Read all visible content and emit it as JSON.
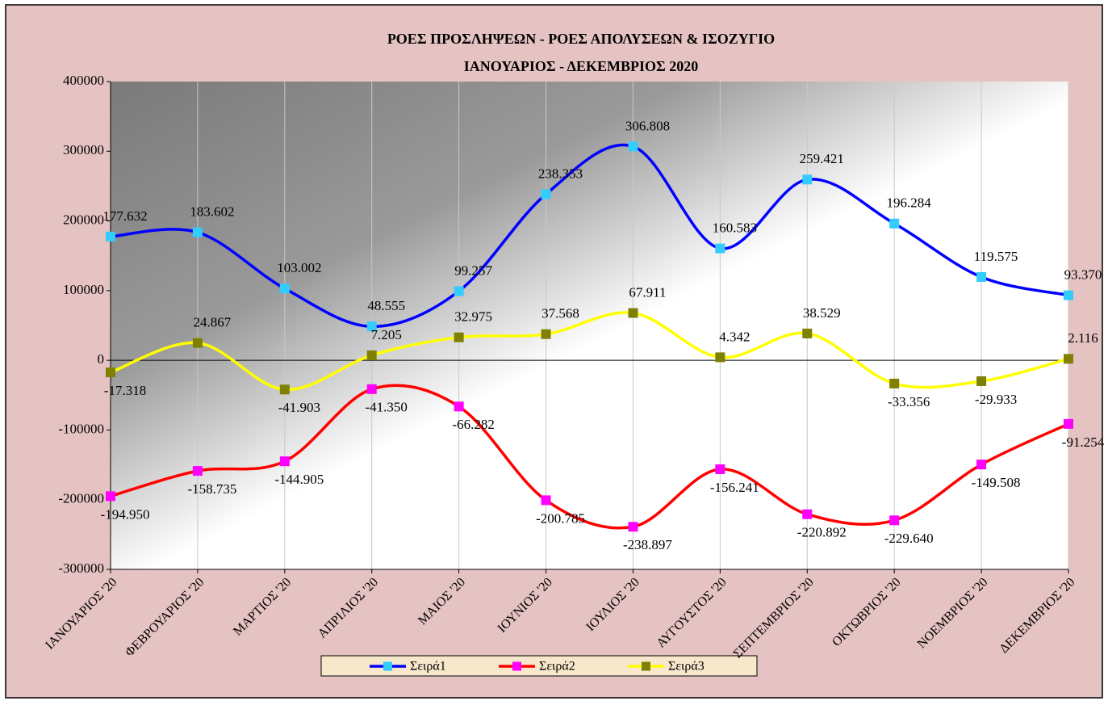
{
  "chart_data": {
    "type": "line",
    "title": [
      "ΡΟΕΣ ΠΡΟΣΛΗΨΕΩΝ - ΡΟΕΣ ΑΠΟΛΥΣΕΩΝ & ΙΣΟΖΥΓΙΟ",
      "ΙΑΝΟΥΑΡΙΟΣ - ΔΕΚΕΜΒΡΙΟΣ 2020"
    ],
    "categories": [
      "ΙΑΝΟΥΑΡΙΟΣ '20",
      "ΦΕΒΡΟΥΑΡΙΟΣ '20",
      "ΜΑΡΤΙΟΣ '20",
      "ΑΠΡΙΛΙΟΣ '20",
      "ΜΑΙΟΣ '20",
      "ΙΟΥΝΙΟΣ '20",
      "ΙΟΥΛΙΟΣ '20",
      "ΑΥΓΟΥΣΤΟΣ '20",
      "ΣΕΠΤΕΜΒΡΙΟΣ '20",
      "ΟΚΤΩΒΡΙΟΣ '20",
      "ΝΟΕΜΒΡΙΟΣ '20",
      "ΔΕΚΕΜΒΡΙΟΣ '20"
    ],
    "series": [
      {
        "name": "Σειρά1",
        "color": "#0000ff",
        "marker_color": "#33ccff",
        "values": [
          177632,
          183602,
          103002,
          48555,
          99257,
          238353,
          306808,
          160583,
          259421,
          196284,
          119575,
          93370
        ],
        "value_labels": [
          "177.632",
          "183.602",
          "103.002",
          "48.555",
          "99.257",
          "238.353",
          "306.808",
          "160.583",
          "259.421",
          "196.284",
          "119.575",
          "93.370"
        ]
      },
      {
        "name": "Σειρά2",
        "color": "#ff0000",
        "marker_color": "#ff00ff",
        "values": [
          -194950,
          -158735,
          -144905,
          -41350,
          -66282,
          -200785,
          -238897,
          -156241,
          -220892,
          -229640,
          -149508,
          -91254
        ],
        "value_labels": [
          "-194.950",
          "-158.735",
          "-144.905",
          "-41.350",
          "-66.282",
          "-200.785",
          "-238.897",
          "-156.241",
          "-220.892",
          "-229.640",
          "-149.508",
          "-91.254"
        ]
      },
      {
        "name": "Σειρά3",
        "color": "#ffff00",
        "marker_color": "#808000",
        "values": [
          -17318,
          24867,
          -41903,
          7205,
          32975,
          37568,
          67911,
          4342,
          38529,
          -33356,
          -29933,
          2116
        ],
        "value_labels": [
          "-17.318",
          "24.867",
          "-41.903",
          "7.205",
          "32.975",
          "37.568",
          "67.911",
          "4.342",
          "38.529",
          "-33.356",
          "-29.933",
          "2.116"
        ]
      }
    ],
    "ylim": [
      -300000,
      400000
    ],
    "yticks": [
      -300000,
      -200000,
      -100000,
      0,
      100000,
      200000,
      300000,
      400000
    ],
    "smooth": true,
    "legend": "bottom"
  }
}
